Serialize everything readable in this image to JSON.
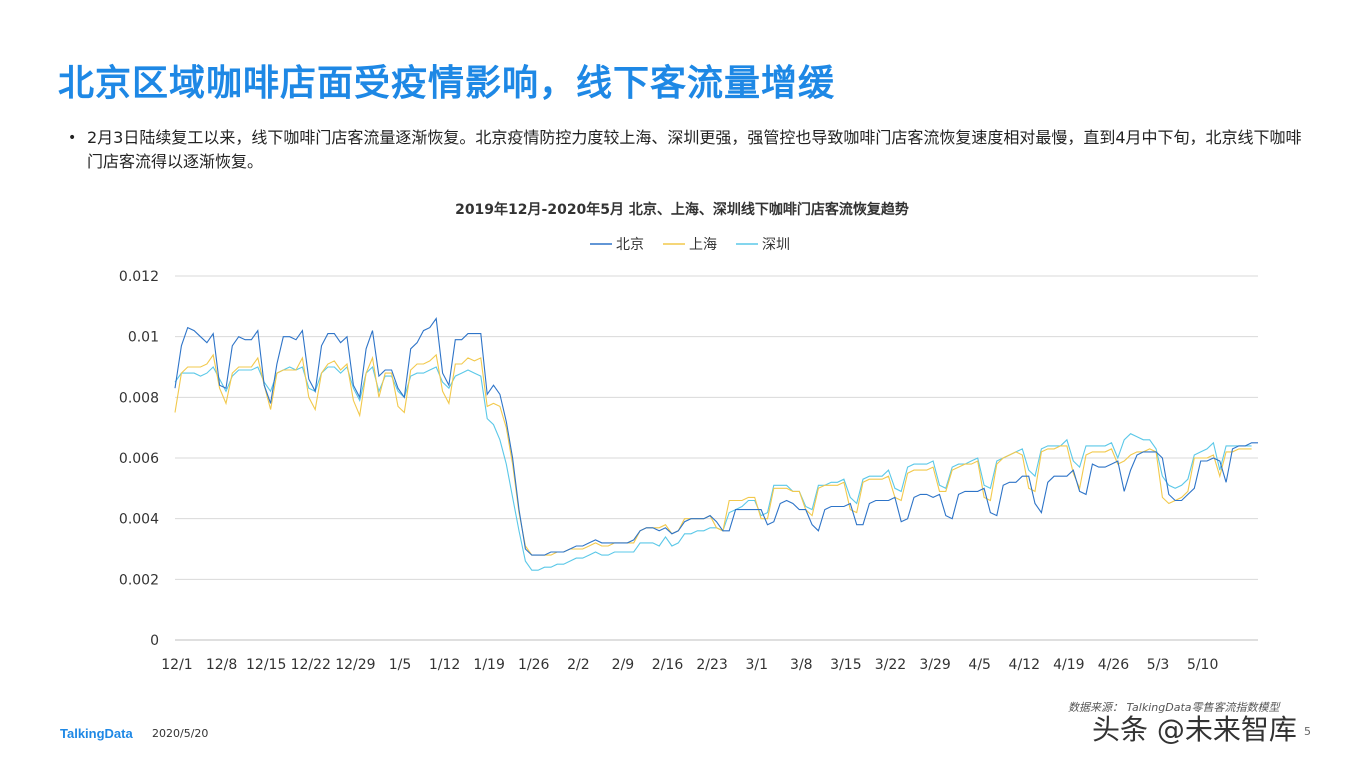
{
  "page": {
    "title": "北京区域咖啡店面受疫情影响，线下客流量增缓",
    "bullet_dot": "•",
    "bullet_text": "2月3日陆续复工以来，线下咖啡门店客流量逐渐恢复。北京疫情防控力度较上海、深圳更强，强管控也导致咖啡门店客流恢复速度相对最慢，直到4月中下旬，北京线下咖啡门店客流得以逐渐恢复。",
    "source": "数据来源： TalkingData零售客流指数模型",
    "logo": "TalkingData",
    "date": "2020/5/20",
    "page_number": "5",
    "watermark": "头条 @未来智库"
  },
  "colors": {
    "beijing": "#2e74c8",
    "shanghai": "#f2c94c",
    "shenzhen": "#5bc8e8",
    "grid": "#d9d9d9",
    "axis_text": "#333333"
  },
  "chart_data": {
    "type": "line",
    "title": "2019年12月-2020年5月   北京、上海、深圳线下咖啡门店客流恢复趋势",
    "xlabel": "",
    "ylabel": "",
    "ylim": [
      0,
      0.012
    ],
    "yticks": [
      "0",
      "0.002",
      "0.004",
      "0.006",
      "0.008",
      "0.01",
      "0.012"
    ],
    "grid": true,
    "legend_position": "top",
    "x_tick_labels": [
      "12/1",
      "12/8",
      "12/15",
      "12/22",
      "12/29",
      "1/5",
      "1/12",
      "1/19",
      "1/26",
      "2/2",
      "2/9",
      "2/16",
      "2/23",
      "3/1",
      "3/8",
      "3/15",
      "3/22",
      "3/29",
      "4/5",
      "4/12",
      "4/19",
      "4/26",
      "5/3",
      "5/10"
    ],
    "x_tick_every_days": 7,
    "start_label": "12/1",
    "series": [
      {
        "name": "北京",
        "color_key": "beijing",
        "values": [
          0.0083,
          0.0097,
          0.0103,
          0.0102,
          0.01,
          0.0098,
          0.0101,
          0.0084,
          0.0083,
          0.0097,
          0.01,
          0.0099,
          0.0099,
          0.0102,
          0.0084,
          0.0078,
          0.0091,
          0.01,
          0.01,
          0.0099,
          0.0102,
          0.0086,
          0.0082,
          0.0097,
          0.0101,
          0.0101,
          0.0098,
          0.01,
          0.0084,
          0.008,
          0.0096,
          0.0102,
          0.0087,
          0.0089,
          0.0089,
          0.0083,
          0.008,
          0.0096,
          0.0098,
          0.0102,
          0.0103,
          0.0106,
          0.0088,
          0.0084,
          0.0099,
          0.0099,
          0.0101,
          0.0101,
          0.0101,
          0.0081,
          0.0084,
          0.0081,
          0.0072,
          0.006,
          0.0043,
          0.003,
          0.0028,
          0.0028,
          0.0028,
          0.0029,
          0.0029,
          0.0029,
          0.003,
          0.0031,
          0.0031,
          0.0032,
          0.0033,
          0.0032,
          0.0032,
          0.0032,
          0.0032,
          0.0032,
          0.0033,
          0.0036,
          0.0037,
          0.0037,
          0.0036,
          0.0037,
          0.0035,
          0.0036,
          0.0039,
          0.004,
          0.004,
          0.004,
          0.0041,
          0.0039,
          0.0036,
          0.0036,
          0.0043,
          0.0043,
          0.0043,
          0.0043,
          0.0043,
          0.0038,
          0.0039,
          0.0045,
          0.0046,
          0.0045,
          0.0043,
          0.0043,
          0.0038,
          0.0036,
          0.0043,
          0.0044,
          0.0044,
          0.0044,
          0.0045,
          0.0038,
          0.0038,
          0.0045,
          0.0046,
          0.0046,
          0.0046,
          0.0047,
          0.0039,
          0.004,
          0.0047,
          0.0048,
          0.0048,
          0.0047,
          0.0048,
          0.0041,
          0.004,
          0.0048,
          0.0049,
          0.0049,
          0.0049,
          0.005,
          0.0042,
          0.0041,
          0.0051,
          0.0052,
          0.0052,
          0.0054,
          0.0054,
          0.0045,
          0.0042,
          0.0052,
          0.0054,
          0.0054,
          0.0054,
          0.0056,
          0.0049,
          0.0048,
          0.0058,
          0.0057,
          0.0057,
          0.0058,
          0.0059,
          0.0049,
          0.0056,
          0.0061,
          0.0062,
          0.0062,
          0.0062,
          0.006,
          0.0048,
          0.0046,
          0.0046,
          0.0048,
          0.005,
          0.0059,
          0.0059,
          0.006,
          0.0059,
          0.0052,
          0.0063,
          0.0064,
          0.0064,
          0.0065,
          0.0065
        ]
      },
      {
        "name": "上海",
        "color_key": "shanghai",
        "values": [
          0.0075,
          0.0088,
          0.009,
          0.009,
          0.009,
          0.0091,
          0.0094,
          0.0083,
          0.0078,
          0.0088,
          0.009,
          0.009,
          0.009,
          0.0093,
          0.0084,
          0.0076,
          0.0088,
          0.0089,
          0.0089,
          0.0089,
          0.0093,
          0.008,
          0.0076,
          0.0088,
          0.0091,
          0.0092,
          0.0089,
          0.0091,
          0.0079,
          0.0074,
          0.0088,
          0.0093,
          0.008,
          0.0088,
          0.0088,
          0.0077,
          0.0075,
          0.0089,
          0.0091,
          0.0091,
          0.0092,
          0.0094,
          0.0082,
          0.0078,
          0.0091,
          0.0091,
          0.0093,
          0.0092,
          0.0093,
          0.0077,
          0.0078,
          0.0077,
          0.007,
          0.0058,
          0.0042,
          0.0031,
          0.0028,
          0.0028,
          0.0028,
          0.0028,
          0.0029,
          0.0029,
          0.003,
          0.003,
          0.003,
          0.0031,
          0.0032,
          0.0031,
          0.0031,
          0.0032,
          0.0032,
          0.0032,
          0.0032,
          0.0036,
          0.0037,
          0.0037,
          0.0037,
          0.0038,
          0.0035,
          0.0036,
          0.004,
          0.004,
          0.004,
          0.004,
          0.0041,
          0.0037,
          0.0036,
          0.0046,
          0.0046,
          0.0046,
          0.0047,
          0.0047,
          0.004,
          0.004,
          0.005,
          0.005,
          0.005,
          0.0049,
          0.0049,
          0.0043,
          0.0041,
          0.005,
          0.0051,
          0.0051,
          0.0051,
          0.0052,
          0.0043,
          0.0042,
          0.0052,
          0.0053,
          0.0053,
          0.0053,
          0.0054,
          0.0047,
          0.0046,
          0.0055,
          0.0056,
          0.0056,
          0.0056,
          0.0057,
          0.0049,
          0.0049,
          0.0056,
          0.0057,
          0.0058,
          0.0058,
          0.0059,
          0.0047,
          0.0046,
          0.0058,
          0.006,
          0.0061,
          0.0062,
          0.0061,
          0.005,
          0.0049,
          0.0062,
          0.0063,
          0.0063,
          0.0064,
          0.0064,
          0.0055,
          0.005,
          0.0061,
          0.0062,
          0.0062,
          0.0062,
          0.0063,
          0.0058,
          0.0059,
          0.0061,
          0.0062,
          0.0062,
          0.0063,
          0.0062,
          0.0047,
          0.0045,
          0.0046,
          0.0047,
          0.0049,
          0.006,
          0.006,
          0.006,
          0.0061,
          0.0054,
          0.0062,
          0.0062,
          0.0063,
          0.0063,
          0.0063
        ]
      },
      {
        "name": "深圳",
        "color_key": "shenzhen",
        "values": [
          0.0085,
          0.0088,
          0.0088,
          0.0088,
          0.0087,
          0.0088,
          0.009,
          0.0086,
          0.0082,
          0.0087,
          0.0089,
          0.0089,
          0.0089,
          0.009,
          0.0085,
          0.0082,
          0.0088,
          0.0089,
          0.009,
          0.0089,
          0.009,
          0.0083,
          0.0082,
          0.0088,
          0.009,
          0.009,
          0.0088,
          0.009,
          0.0083,
          0.0079,
          0.0088,
          0.009,
          0.0082,
          0.0087,
          0.0087,
          0.0082,
          0.008,
          0.0087,
          0.0088,
          0.0088,
          0.0089,
          0.009,
          0.0085,
          0.0083,
          0.0087,
          0.0088,
          0.0089,
          0.0088,
          0.0087,
          0.0073,
          0.0071,
          0.0066,
          0.0058,
          0.0047,
          0.0036,
          0.0026,
          0.0023,
          0.0023,
          0.0024,
          0.0024,
          0.0025,
          0.0025,
          0.0026,
          0.0027,
          0.0027,
          0.0028,
          0.0029,
          0.0028,
          0.0028,
          0.0029,
          0.0029,
          0.0029,
          0.0029,
          0.0032,
          0.0032,
          0.0032,
          0.0031,
          0.0034,
          0.0031,
          0.0032,
          0.0035,
          0.0035,
          0.0036,
          0.0036,
          0.0037,
          0.0037,
          0.0036,
          0.0042,
          0.0043,
          0.0044,
          0.0046,
          0.0046,
          0.0041,
          0.0042,
          0.0051,
          0.0051,
          0.0051,
          0.0049,
          0.0049,
          0.0044,
          0.0043,
          0.0051,
          0.0051,
          0.0052,
          0.0052,
          0.0053,
          0.0047,
          0.0045,
          0.0053,
          0.0054,
          0.0054,
          0.0054,
          0.0056,
          0.005,
          0.0049,
          0.0057,
          0.0058,
          0.0058,
          0.0058,
          0.0059,
          0.0051,
          0.005,
          0.0057,
          0.0058,
          0.0058,
          0.0059,
          0.006,
          0.0051,
          0.005,
          0.0059,
          0.006,
          0.0061,
          0.0062,
          0.0063,
          0.0056,
          0.0054,
          0.0063,
          0.0064,
          0.0064,
          0.0064,
          0.0066,
          0.0059,
          0.0057,
          0.0064,
          0.0064,
          0.0064,
          0.0064,
          0.0065,
          0.006,
          0.0066,
          0.0068,
          0.0067,
          0.0066,
          0.0066,
          0.0063,
          0.0054,
          0.0051,
          0.005,
          0.0051,
          0.0053,
          0.0061,
          0.0062,
          0.0063,
          0.0065,
          0.0056,
          0.0064,
          0.0064,
          0.0064,
          0.0064,
          0.0064
        ]
      }
    ]
  }
}
